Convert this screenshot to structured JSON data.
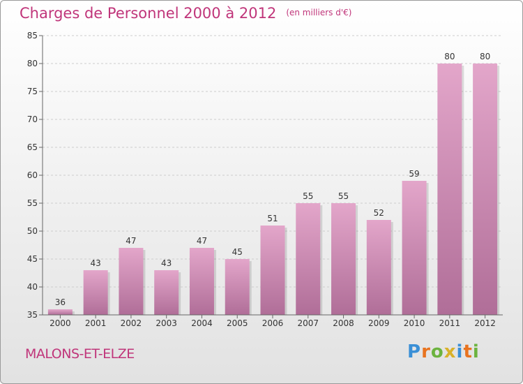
{
  "title": "Charges de Personnel 2000 à 2012",
  "subtitle": "(en milliers d'€)",
  "commune": "MALONS-ET-ELZE",
  "logo": {
    "text": "Proxiti",
    "letter_colors": [
      "#3a8fd6",
      "#e8731f",
      "#6cb33f",
      "#d9b12a",
      "#3a8fd6",
      "#e8731f",
      "#6cb33f"
    ]
  },
  "colors": {
    "title": "#c0357a",
    "bar_light": "#e3a6ca",
    "bar_dark": "#b06e98",
    "grid": "#cccccc",
    "axis": "#666666"
  },
  "chart_data": {
    "type": "bar",
    "categories": [
      "2000",
      "2001",
      "2002",
      "2003",
      "2004",
      "2005",
      "2006",
      "2007",
      "2008",
      "2009",
      "2010",
      "2011",
      "2012"
    ],
    "values": [
      36,
      43,
      47,
      43,
      47,
      45,
      51,
      55,
      55,
      52,
      59,
      80,
      80
    ],
    "ylim": [
      35,
      85
    ],
    "yticks": [
      35,
      40,
      45,
      50,
      55,
      60,
      65,
      70,
      75,
      80,
      85
    ],
    "grid": true,
    "xlabel": "",
    "ylabel": ""
  }
}
